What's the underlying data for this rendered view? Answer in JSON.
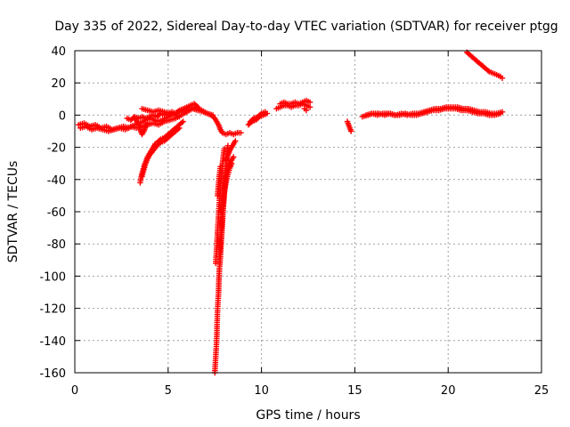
{
  "chart_data": {
    "type": "scatter",
    "title": "Day 335 of 2022, Sidereal Day-to-day VTEC variation (SDTVAR) for receiver ptgg",
    "xlabel": "GPS time / hours",
    "ylabel": "SDTVAR / TECUs",
    "xlim": [
      0,
      25
    ],
    "ylim": [
      -160,
      40
    ],
    "x_ticks": [
      0,
      5,
      10,
      15,
      20,
      25
    ],
    "y_ticks": [
      -160,
      -140,
      -120,
      -100,
      -80,
      -60,
      -40,
      -20,
      0,
      20,
      40
    ],
    "grid": true,
    "marker": "+",
    "series": [
      {
        "name": "ptgg",
        "color": "#ff0000",
        "segments": [
          [
            [
              0.2,
              -6
            ],
            [
              0.5,
              -5
            ],
            [
              0.8,
              -7
            ],
            [
              1.1,
              -6
            ],
            [
              1.4,
              -8
            ],
            [
              1.7,
              -7
            ],
            [
              2.0,
              -9
            ],
            [
              2.3,
              -8
            ],
            [
              2.6,
              -7
            ],
            [
              2.9,
              -8
            ],
            [
              3.2,
              -6
            ],
            [
              3.5,
              -5
            ],
            [
              3.8,
              -3
            ],
            [
              4.1,
              -2
            ],
            [
              4.4,
              -4
            ],
            [
              4.7,
              -3
            ],
            [
              5.0,
              -1
            ],
            [
              5.3,
              1
            ],
            [
              5.6,
              2
            ],
            [
              5.9,
              3
            ],
            [
              6.2,
              4
            ],
            [
              6.5,
              5
            ],
            [
              6.8,
              3
            ],
            [
              7.1,
              1
            ],
            [
              7.4,
              0
            ]
          ],
          [
            [
              0.3,
              -8
            ],
            [
              0.6,
              -7
            ],
            [
              0.9,
              -9
            ],
            [
              1.2,
              -8
            ],
            [
              1.5,
              -9
            ],
            [
              1.8,
              -10
            ],
            [
              2.1,
              -9
            ],
            [
              2.4,
              -8
            ],
            [
              2.7,
              -9
            ],
            [
              3.0,
              -7
            ],
            [
              3.3,
              -8
            ],
            [
              3.6,
              -7
            ],
            [
              3.9,
              -6
            ],
            [
              4.2,
              -5
            ],
            [
              4.5,
              -6
            ],
            [
              4.8,
              -4
            ],
            [
              5.1,
              -3
            ],
            [
              5.4,
              -2
            ],
            [
              5.7,
              0
            ],
            [
              6.0,
              2
            ],
            [
              6.3,
              4
            ],
            [
              6.6,
              3
            ],
            [
              6.9,
              2
            ]
          ],
          [
            [
              2.8,
              -2
            ],
            [
              3.0,
              -3
            ],
            [
              3.2,
              -1
            ],
            [
              3.4,
              -2
            ],
            [
              3.6,
              -1
            ],
            [
              3.8,
              -2
            ],
            [
              4.0,
              -1
            ],
            [
              4.2,
              0
            ],
            [
              4.4,
              -1
            ],
            [
              4.6,
              1
            ],
            [
              4.8,
              0
            ],
            [
              5.0,
              1
            ],
            [
              5.2,
              2
            ],
            [
              5.4,
              1
            ],
            [
              5.6,
              3
            ],
            [
              5.8,
              4
            ],
            [
              6.0,
              5
            ],
            [
              6.2,
              6
            ],
            [
              6.4,
              7
            ],
            [
              6.6,
              5
            ]
          ],
          [
            [
              3.6,
              4
            ],
            [
              3.9,
              3
            ],
            [
              4.2,
              2
            ],
            [
              4.5,
              3
            ],
            [
              4.8,
              2
            ],
            [
              5.1,
              1
            ],
            [
              5.4,
              0
            ],
            [
              5.6,
              -1
            ]
          ],
          [
            [
              3.2,
              -2
            ],
            [
              3.4,
              -5
            ],
            [
              3.5,
              -9
            ],
            [
              3.6,
              -12
            ],
            [
              3.7,
              -10
            ],
            [
              3.8,
              -7
            ],
            [
              3.9,
              -5
            ]
          ],
          [
            [
              3.5,
              -42
            ],
            [
              3.6,
              -36
            ],
            [
              3.7,
              -32
            ],
            [
              3.8,
              -29
            ],
            [
              3.9,
              -26
            ],
            [
              4.0,
              -24
            ],
            [
              4.1,
              -22
            ],
            [
              4.2,
              -20
            ],
            [
              4.3,
              -18
            ],
            [
              4.4,
              -17
            ],
            [
              4.6,
              -15
            ],
            [
              4.8,
              -14
            ],
            [
              5.0,
              -12
            ],
            [
              5.2,
              -10
            ],
            [
              5.4,
              -8
            ],
            [
              5.6,
              -6
            ],
            [
              5.8,
              -4
            ]
          ],
          [
            [
              3.6,
              -38
            ],
            [
              3.7,
              -34
            ],
            [
              3.8,
              -30
            ],
            [
              3.9,
              -27
            ],
            [
              4.0,
              -25
            ],
            [
              4.2,
              -22
            ],
            [
              4.4,
              -19
            ],
            [
              4.6,
              -17
            ],
            [
              4.8,
              -16
            ],
            [
              5.0,
              -14
            ],
            [
              5.2,
              -12
            ],
            [
              5.4,
              -10
            ],
            [
              5.6,
              -8
            ]
          ],
          [
            [
              6.9,
              2
            ],
            [
              7.1,
              1
            ],
            [
              7.3,
              0
            ],
            [
              7.5,
              -2
            ],
            [
              7.6,
              -4
            ],
            [
              7.7,
              -6
            ],
            [
              7.8,
              -9
            ],
            [
              7.9,
              -11
            ],
            [
              8.1,
              -12
            ],
            [
              8.3,
              -11
            ],
            [
              8.5,
              -12
            ],
            [
              8.7,
              -11
            ],
            [
              8.9,
              -11
            ]
          ],
          [
            [
              7.5,
              -160
            ],
            [
              7.55,
              -150
            ],
            [
              7.6,
              -140
            ],
            [
              7.62,
              -130
            ],
            [
              7.65,
              -120
            ],
            [
              7.7,
              -110
            ],
            [
              7.72,
              -102
            ],
            [
              7.75,
              -95
            ],
            [
              7.8,
              -88
            ],
            [
              7.85,
              -78
            ],
            [
              7.9,
              -68
            ],
            [
              7.95,
              -58
            ],
            [
              8.0,
              -48
            ],
            [
              8.05,
              -40
            ],
            [
              8.1,
              -32
            ],
            [
              8.15,
              -25
            ],
            [
              8.2,
              -19
            ]
          ],
          [
            [
              7.55,
              -92
            ],
            [
              7.6,
              -82
            ],
            [
              7.65,
              -72
            ],
            [
              7.7,
              -62
            ],
            [
              7.75,
              -53
            ],
            [
              7.8,
              -45
            ],
            [
              7.85,
              -38
            ],
            [
              7.9,
              -31
            ],
            [
              7.95,
              -26
            ],
            [
              8.0,
              -21
            ]
          ],
          [
            [
              7.65,
              -50
            ],
            [
              7.7,
              -43
            ],
            [
              7.75,
              -37
            ],
            [
              7.8,
              -32
            ]
          ],
          [
            [
              7.75,
              -88
            ],
            [
              7.8,
              -80
            ],
            [
              7.85,
              -72
            ],
            [
              7.9,
              -64
            ],
            [
              7.95,
              -57
            ],
            [
              8.0,
              -50
            ],
            [
              8.05,
              -44
            ],
            [
              8.1,
              -38
            ],
            [
              8.2,
              -33
            ],
            [
              8.3,
              -30
            ],
            [
              8.4,
              -28
            ],
            [
              8.5,
              -26
            ]
          ],
          [
            [
              7.85,
              -60
            ],
            [
              7.9,
              -54
            ],
            [
              8.0,
              -48
            ],
            [
              8.1,
              -42
            ],
            [
              8.2,
              -37
            ],
            [
              8.3,
              -33
            ],
            [
              8.4,
              -30
            ]
          ],
          [
            [
              8.1,
              -28
            ],
            [
              8.2,
              -25
            ],
            [
              8.3,
              -22
            ],
            [
              8.4,
              -20
            ],
            [
              8.5,
              -18
            ],
            [
              8.6,
              -16
            ]
          ],
          [
            [
              9.3,
              -6
            ],
            [
              9.5,
              -4
            ],
            [
              9.7,
              -3
            ],
            [
              9.9,
              -1
            ],
            [
              10.1,
              0
            ],
            [
              10.3,
              1
            ]
          ],
          [
            [
              9.4,
              -4
            ],
            [
              9.6,
              -2
            ],
            [
              9.8,
              -1
            ],
            [
              10.0,
              1
            ],
            [
              10.2,
              2
            ]
          ],
          [
            [
              10.8,
              4
            ],
            [
              11.0,
              5
            ],
            [
              11.2,
              6
            ],
            [
              11.4,
              6
            ],
            [
              11.6,
              5
            ],
            [
              11.8,
              6
            ],
            [
              12.0,
              6
            ],
            [
              12.2,
              7
            ],
            [
              12.4,
              6
            ],
            [
              12.6,
              5
            ]
          ],
          [
            [
              11.0,
              7
            ],
            [
              11.2,
              8
            ],
            [
              11.4,
              7
            ],
            [
              11.6,
              7
            ],
            [
              11.8,
              8
            ],
            [
              12.0,
              7
            ],
            [
              12.2,
              8
            ],
            [
              12.4,
              9
            ],
            [
              12.6,
              8
            ]
          ],
          [
            [
              12.3,
              4
            ],
            [
              12.4,
              3
            ]
          ],
          [
            [
              14.6,
              -4
            ],
            [
              14.7,
              -7
            ],
            [
              14.8,
              -10
            ]
          ],
          [
            [
              15.4,
              -1
            ],
            [
              15.7,
              0
            ],
            [
              16.0,
              1
            ],
            [
              16.3,
              1
            ],
            [
              16.6,
              0
            ],
            [
              16.9,
              1
            ],
            [
              17.2,
              0
            ],
            [
              17.5,
              1
            ],
            [
              17.8,
              0
            ],
            [
              18.1,
              1
            ],
            [
              18.4,
              1
            ],
            [
              18.7,
              2
            ],
            [
              19.0,
              3
            ],
            [
              19.3,
              4
            ],
            [
              19.6,
              4
            ],
            [
              19.9,
              5
            ],
            [
              20.2,
              5
            ],
            [
              20.5,
              5
            ],
            [
              20.8,
              4
            ],
            [
              21.1,
              4
            ],
            [
              21.4,
              3
            ],
            [
              21.7,
              2
            ],
            [
              22.0,
              2
            ],
            [
              22.3,
              1
            ],
            [
              22.6,
              1
            ],
            [
              22.9,
              2
            ]
          ],
          [
            [
              15.6,
              0
            ],
            [
              15.9,
              1
            ],
            [
              16.2,
              0
            ],
            [
              16.5,
              1
            ],
            [
              16.8,
              1
            ],
            [
              17.1,
              0
            ],
            [
              17.4,
              0
            ],
            [
              17.7,
              1
            ],
            [
              18.0,
              0
            ],
            [
              18.3,
              0
            ],
            [
              18.6,
              1
            ],
            [
              18.9,
              2
            ],
            [
              19.2,
              3
            ],
            [
              19.5,
              3
            ],
            [
              19.8,
              4
            ],
            [
              20.1,
              4
            ],
            [
              20.4,
              4
            ],
            [
              20.7,
              3
            ],
            [
              21.0,
              3
            ],
            [
              21.3,
              2
            ],
            [
              21.6,
              1
            ],
            [
              21.9,
              1
            ],
            [
              22.2,
              0
            ],
            [
              22.5,
              0
            ],
            [
              22.8,
              1
            ]
          ],
          [
            [
              21.0,
              39
            ],
            [
              21.2,
              37
            ],
            [
              21.4,
              35
            ],
            [
              21.6,
              33
            ],
            [
              21.8,
              31
            ],
            [
              22.0,
              29
            ],
            [
              22.2,
              27
            ],
            [
              22.4,
              26
            ],
            [
              22.6,
              25
            ],
            [
              22.8,
              24
            ],
            [
              22.9,
              23
            ]
          ]
        ]
      }
    ]
  }
}
